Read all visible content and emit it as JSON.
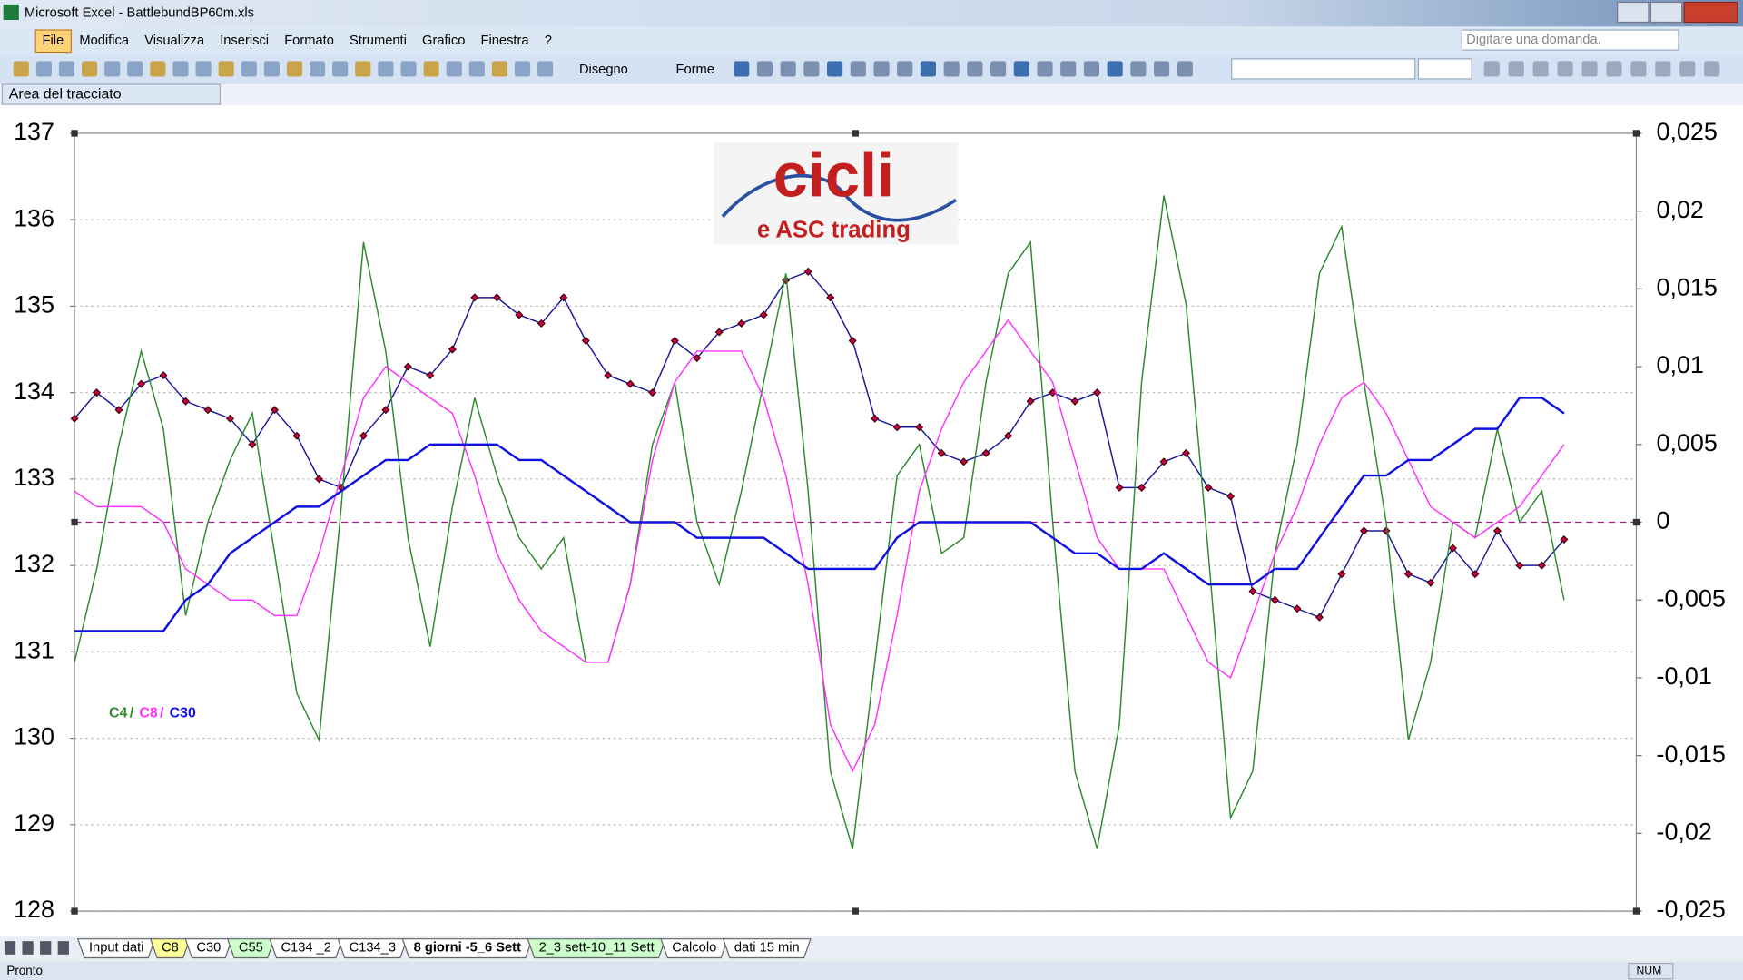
{
  "window": {
    "title": "Microsoft Excel - BattlebundBP60m.xls"
  },
  "menu": [
    "File",
    "Modifica",
    "Visualizza",
    "Inserisci",
    "Formato",
    "Strumenti",
    "Grafico",
    "Finestra",
    "?"
  ],
  "help_box": "Digitare una domanda.",
  "toolbar": {
    "draw": "Disegno",
    "shapes": "Forme"
  },
  "name_box": "Area del tracciato",
  "sheet_tabs": [
    {
      "name": "Input dati",
      "color": "#ffffff"
    },
    {
      "name": "C8",
      "color": "#ffff99"
    },
    {
      "name": "C30",
      "color": "#ffffff"
    },
    {
      "name": "C55",
      "color": "#ccffcc"
    },
    {
      "name": "C134 _2",
      "color": "#ffffff"
    },
    {
      "name": "C134_3",
      "color": "#ffffff"
    },
    {
      "name": "8 giorni -5_6 Sett",
      "color": "#ffffff"
    },
    {
      "name": "2_3 sett-10_11 Sett",
      "color": "#ccffcc"
    },
    {
      "name": "Calcolo",
      "color": "#ffffff"
    },
    {
      "name": "dati 15 min",
      "color": "#ffffff"
    }
  ],
  "active_sheet": 6,
  "status": {
    "text": "Pronto",
    "num": "NUM"
  },
  "chart_data": {
    "type": "line",
    "logo": {
      "title": "cicli",
      "subtitle": "e ASC trading"
    },
    "legend_separator": "/",
    "xlim": [
      0,
      70.25
    ],
    "ylim": [
      128,
      137
    ],
    "yticks": [
      128,
      129,
      130,
      131,
      132,
      133,
      134,
      135,
      136,
      137
    ],
    "y2lim": [
      -0.025,
      0.025
    ],
    "y2ticks": [
      {
        "value": -0.025,
        "label": "-0,025"
      },
      {
        "value": -0.02,
        "label": "-0,02"
      },
      {
        "value": -0.015,
        "label": "-0,015"
      },
      {
        "value": -0.01,
        "label": "-0,01"
      },
      {
        "value": -0.005,
        "label": "-0,005"
      },
      0,
      {
        "value": 0.005,
        "label": "0,005"
      },
      {
        "value": 0.01,
        "label": "0,01"
      },
      {
        "value": 0.015,
        "label": "0,015"
      },
      {
        "value": 0.02,
        "label": "0,02"
      },
      {
        "value": 0.025,
        "label": "0,025"
      }
    ],
    "grid": true,
    "series": [
      {
        "color": "#1a1a9a",
        "marker_color": "#c8004a",
        "axis": "y",
        "values": [
          133.7,
          134.0,
          133.8,
          134.1,
          134.2,
          133.9,
          133.8,
          133.7,
          133.4,
          133.8,
          133.5,
          133.0,
          132.9,
          133.5,
          133.8,
          134.3,
          134.2,
          134.5,
          135.1,
          135.1,
          134.9,
          134.8,
          135.1,
          134.6,
          134.2,
          134.1,
          134.0,
          134.6,
          134.4,
          134.7,
          134.8,
          134.9,
          135.3,
          135.4,
          135.1,
          134.6,
          133.7,
          133.6,
          133.6,
          133.3,
          133.2,
          133.3,
          133.5,
          133.9,
          134.0,
          133.9,
          134.0,
          132.9,
          132.9,
          133.2,
          133.3,
          132.9,
          132.8,
          131.7,
          131.6,
          131.5,
          131.4,
          131.9,
          132.4,
          132.4,
          131.9,
          131.8,
          132.2,
          131.9,
          132.4,
          132.0,
          132.0,
          132.3
        ]
      },
      {
        "name": "C4",
        "color": "#2e8b2e",
        "axis": "y2",
        "values": [
          -0.009,
          -0.003,
          0.005,
          0.011,
          0.006,
          -0.006,
          0,
          0.004,
          0.007,
          -0.002,
          -0.011,
          -0.014,
          0.001,
          0.018,
          0.011,
          -0.001,
          -0.008,
          0.001,
          0.008,
          0.003,
          -0.001,
          -0.003,
          -0.001,
          -0.009,
          -0.009,
          -0.004,
          0.005,
          0.009,
          0,
          -0.004,
          0.002,
          0.009,
          0.016,
          0.002,
          -0.016,
          -0.021,
          -0.009,
          0.003,
          0.005,
          -0.002,
          -0.001,
          0.009,
          0.016,
          0.018,
          0,
          -0.016,
          -0.021,
          -0.013,
          0.009,
          0.021,
          0.014,
          -0.002,
          -0.019,
          -0.016,
          -0.002,
          0.005,
          0.016,
          0.019,
          0.009,
          0,
          -0.014,
          -0.009,
          0,
          -0.001,
          0.006,
          0,
          0.002,
          -0.005
        ]
      },
      {
        "name": "C8",
        "color": "#ff33ff",
        "axis": "y2",
        "values": [
          0.002,
          0.001,
          0.001,
          0.001,
          0,
          -0.003,
          -0.004,
          -0.005,
          -0.005,
          -0.006,
          -0.006,
          -0.002,
          0.003,
          0.008,
          0.01,
          0.009,
          0.008,
          0.007,
          0.003,
          -0.002,
          -0.005,
          -0.007,
          -0.008,
          -0.009,
          -0.009,
          -0.004,
          0.004,
          0.009,
          0.011,
          0.011,
          0.011,
          0.008,
          0.003,
          -0.004,
          -0.013,
          -0.016,
          -0.013,
          -0.006,
          0.002,
          0.006,
          0.009,
          0.011,
          0.013,
          0.011,
          0.009,
          0.004,
          -0.001,
          -0.003,
          -0.003,
          -0.003,
          -0.006,
          -0.009,
          -0.01,
          -0.006,
          -0.002,
          0.001,
          0.005,
          0.008,
          0.009,
          0.007,
          0.004,
          0.001,
          0,
          -0.001,
          0,
          0.001,
          0.003,
          0.005
        ]
      },
      {
        "name": "C30",
        "color": "#1010e0",
        "axis": "y2",
        "values": [
          -0.007,
          -0.007,
          -0.007,
          -0.007,
          -0.007,
          -0.005,
          -0.004,
          -0.002,
          -0.001,
          0,
          0.001,
          0.001,
          0.002,
          0.003,
          0.004,
          0.004,
          0.005,
          0.005,
          0.005,
          0.005,
          0.004,
          0.004,
          0.003,
          0.002,
          0.001,
          0,
          0,
          0,
          -0.001,
          -0.001,
          -0.001,
          -0.001,
          -0.002,
          -0.003,
          -0.003,
          -0.003,
          -0.003,
          -0.001,
          0,
          0,
          0,
          0,
          0,
          0,
          -0.001,
          -0.002,
          -0.002,
          -0.003,
          -0.003,
          -0.002,
          -0.003,
          -0.004,
          -0.004,
          -0.004,
          -0.003,
          -0.003,
          -0.001,
          0.001,
          0.003,
          0.003,
          0.004,
          0.004,
          0.005,
          0.006,
          0.006,
          0.008,
          0.008,
          0.007
        ]
      }
    ],
    "zero_line": {
      "color": "#a0208a"
    }
  }
}
